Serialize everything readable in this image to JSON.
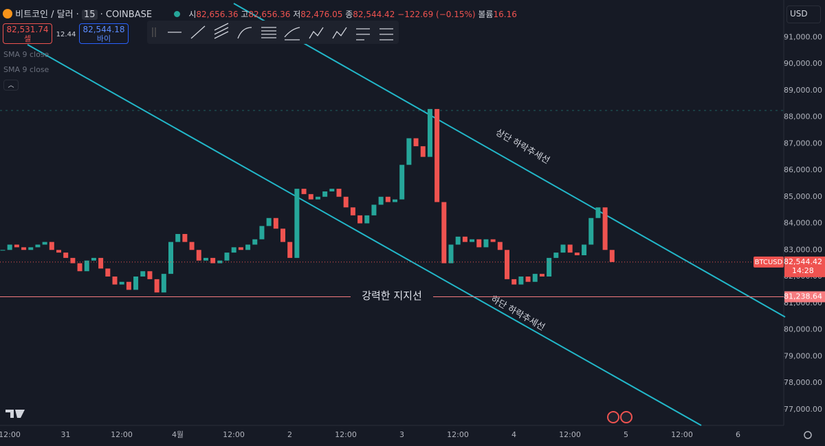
{
  "header": {
    "symbol": "비트코인 / 달러 ·",
    "interval": "15",
    "exchange": "· COINBASE",
    "ohlc": [
      {
        "label": "시",
        "value": "82,656.36"
      },
      {
        "label": "고",
        "value": "82,656.36"
      },
      {
        "label": "저",
        "value": "82,476.05"
      },
      {
        "label": "종",
        "value": "82,544.42"
      }
    ],
    "change": "−122.69 (−0.15%)",
    "volume": {
      "label": "볼륨",
      "value": "16.16"
    },
    "currency": "USD"
  },
  "trade": {
    "sell": {
      "price": "82,531.74",
      "label": "셀"
    },
    "spread": "12.44",
    "buy": {
      "price": "82,544.18",
      "label": "바이"
    }
  },
  "indicators": [
    "SMA 9 close",
    "SMA 9 close"
  ],
  "chart_data": {
    "type": "candlestick",
    "xticks": [
      "12:00",
      "31",
      "12:00",
      "4월",
      "12:00",
      "2",
      "12:00",
      "3",
      "12:00",
      "4",
      "12:00",
      "5",
      "12:00",
      "6"
    ],
    "series": [
      {
        "name": "BTCUSD",
        "values": [
          83000,
          83200,
          83100,
          83000,
          83100,
          83200,
          83300,
          83000,
          82900,
          82700,
          82500,
          82200,
          82600,
          82700,
          82300,
          82000,
          81700,
          81800,
          81500,
          82000,
          82200,
          81900,
          81400,
          82100,
          83300,
          83600,
          83300,
          83000,
          82600,
          82700,
          82500,
          82600,
          82900,
          83100,
          83000,
          83200,
          83400,
          83900,
          84200,
          83800,
          83300,
          82700,
          85300,
          85100,
          84900,
          85000,
          85200,
          85300,
          85000,
          84600,
          84300,
          84000,
          84300,
          84700,
          85000,
          84800,
          84900,
          86200,
          87200,
          86900,
          86500,
          88300,
          84800,
          82500,
          83200,
          83500,
          83300,
          83400,
          83100,
          83400,
          83300,
          83000,
          81900,
          81700,
          82000,
          81800,
          82100,
          82000,
          82700,
          82900,
          83200,
          82900,
          82800,
          83200,
          84200,
          84600,
          83000,
          82544.42
        ],
        "last_label": "82,544.42",
        "countdown": "14:28"
      }
    ],
    "ylim": [
      76400,
      92400
    ],
    "yticks": [
      {
        "value": 77000,
        "label": "77,000.00"
      },
      {
        "value": 78000,
        "label": "78,000.00"
      },
      {
        "value": 79000,
        "label": "79,000.00"
      },
      {
        "value": 80000,
        "label": "80,000.00"
      },
      {
        "value": 81000,
        "label": "81,000.00"
      },
      {
        "value": 82000,
        "label": "82,000.00"
      },
      {
        "value": 83000,
        "label": "83,000.00"
      },
      {
        "value": 84000,
        "label": "84,000.00"
      },
      {
        "value": 85000,
        "label": "85,000.00"
      },
      {
        "value": 86000,
        "label": "86,000.00"
      },
      {
        "value": 87000,
        "label": "87,000.00"
      },
      {
        "value": 88000,
        "label": "88,000.00"
      },
      {
        "value": 89000,
        "label": "89,000.00"
      },
      {
        "value": 90000,
        "label": "90,000.00"
      },
      {
        "value": 91000,
        "label": "91,000.00"
      }
    ],
    "support": {
      "label": "강력한 지지선",
      "value": 81238.64,
      "value_label": "81,238.64"
    },
    "annotations": [
      "상단 하락추세선",
      "하단 하락추세선"
    ],
    "up_color": "#26a69a",
    "down_color": "#ef5350"
  }
}
